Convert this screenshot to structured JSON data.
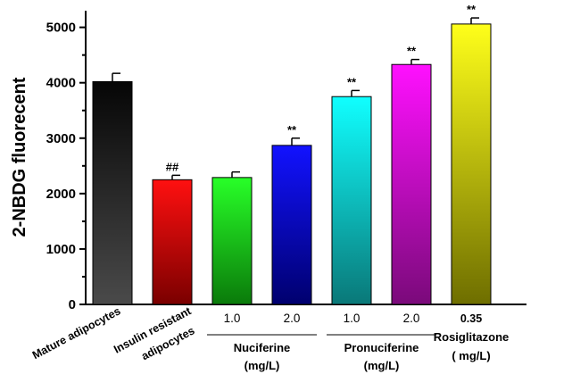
{
  "chart_data": {
    "type": "bar",
    "ylabel": "2-NBDG fluorecent",
    "ylim": [
      0,
      5300
    ],
    "yticks": [
      0,
      1000,
      2000,
      3000,
      4000,
      5000
    ],
    "categories": [
      [
        "Mature adipocytes"
      ],
      [
        "Insulin resistant",
        "adipocytes"
      ],
      [
        "1.0"
      ],
      [
        "2.0"
      ],
      [
        "1.0"
      ],
      [
        "2.0"
      ],
      [
        "0.35"
      ]
    ],
    "values": [
      4020,
      2250,
      2290,
      2870,
      3750,
      4330,
      5060
    ],
    "errors": [
      150,
      80,
      100,
      130,
      110,
      90,
      110
    ],
    "significance": [
      "",
      "##",
      "",
      "**",
      "**",
      "**",
      "**"
    ],
    "colors": [
      [
        "#060606",
        "#4a4a4a"
      ],
      [
        "#ff1010",
        "#7a0000"
      ],
      [
        "#28ff28",
        "#0a7a0a"
      ],
      [
        "#1212ff",
        "#00006e"
      ],
      [
        "#10ffff",
        "#0a7878"
      ],
      [
        "#ff10ff",
        "#7a0a7a"
      ],
      [
        "#ffff1a",
        "#6e6e00"
      ]
    ],
    "groups": [
      {
        "label": "Nuciferine",
        "unit": "(mg/L)",
        "bars": [
          2,
          3
        ]
      },
      {
        "label": "Pronuciferine",
        "unit": "(mg/L)",
        "bars": [
          4,
          5
        ]
      },
      {
        "label": "Rosiglitazone",
        "unit": "( mg/L)",
        "bars": [
          6
        ]
      }
    ],
    "legend": "none",
    "grid": false
  }
}
